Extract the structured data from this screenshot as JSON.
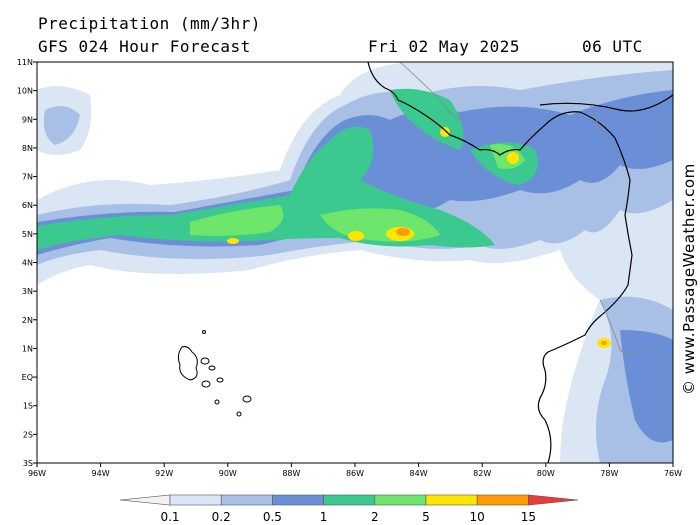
{
  "title": "Precipitation (mm/3hr)",
  "subtitle": "GFS 024 Hour Forecast",
  "date": "Fri 02 May 2025",
  "time": "06 UTC",
  "credit": "© www.PassageWeather.com",
  "lat_labels": [
    "11N",
    "10N",
    "9N",
    "8N",
    "7N",
    "6N",
    "5N",
    "4N",
    "3N",
    "2N",
    "1N",
    "EQ",
    "1S",
    "2S",
    "3S"
  ],
  "lon_labels": [
    "96W",
    "94W",
    "92W",
    "90W",
    "88W",
    "86W",
    "84W",
    "82W",
    "80W",
    "78W",
    "76W"
  ],
  "legend": {
    "labels": [
      "0.1",
      "0.2",
      "0.5",
      "1",
      "2",
      "5",
      "10",
      "15"
    ],
    "colors": [
      "#f2f2f2",
      "#dbe6f5",
      "#a9c0e6",
      "#6b8fd6",
      "#3cc98f",
      "#6ee66b",
      "#ffe600",
      "#ff9a00",
      "#e83c3c"
    ]
  },
  "palette": {
    "light": "#dbe6f5",
    "blue": "#a9c0e6",
    "darkblue": "#6b8fd6",
    "teal": "#3cc98f",
    "green": "#6ee66b",
    "yellow": "#ffe600",
    "orange": "#ff9a00"
  }
}
